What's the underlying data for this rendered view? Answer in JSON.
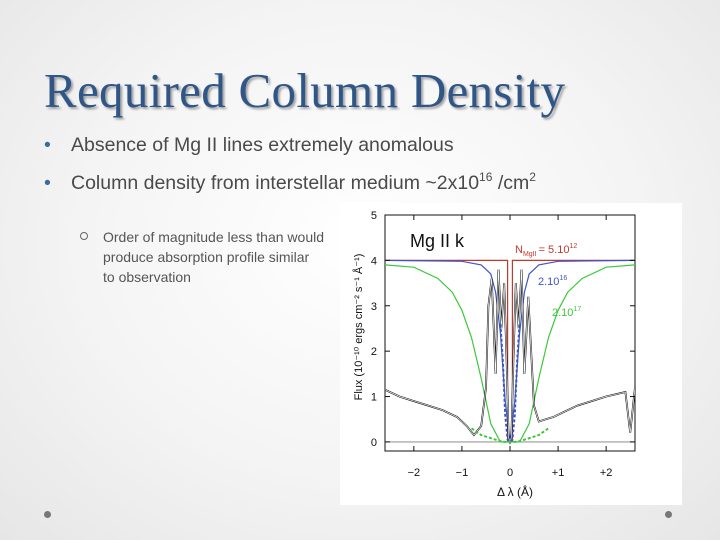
{
  "slide": {
    "title": "Required Column Density",
    "bullets": [
      {
        "text": "Absence of Mg II lines extremely anomalous"
      },
      {
        "text_pre": "Column density from interstellar medium ~2x10",
        "exp1": "16",
        "text_mid": " /cm",
        "exp2": "2"
      }
    ],
    "sub_bullet": "Order of magnitude less than would produce absorption profile similar to observation"
  },
  "figure": {
    "plot_title": "Mg II k",
    "ylabel": "Flux (10⁻¹⁰ ergs cm⁻² s⁻¹ Å⁻¹)",
    "xlabel": "Δ λ (Å)",
    "annotations": {
      "n_label": "N",
      "n_sub": "MgII",
      "n_value": "= 5.10",
      "n_exp": "12",
      "a2_value": "2.10",
      "a2_exp": "16",
      "a3_value": "2.10",
      "a3_exp": "17"
    },
    "colors": {
      "red": "#c0392b",
      "blue": "#3b55c8",
      "green": "#3cc83c",
      "black": "#111111",
      "gray": "#9a9a9a"
    }
  },
  "chart_data": {
    "type": "line",
    "title": "Mg II k",
    "xlabel": "Δ λ (Å)",
    "ylabel": "Flux (10⁻¹⁰ ergs cm⁻² s⁻¹ Å⁻¹)",
    "xlim": [
      -2.6,
      2.6
    ],
    "ylim": [
      -0.2,
      5.0
    ],
    "xticks": [
      "−2",
      "−1",
      "0",
      "+1",
      "+2"
    ],
    "xtick_values": [
      -2,
      -1,
      0,
      1,
      2
    ],
    "yticks": [
      "0",
      "1",
      "2",
      "3",
      "4",
      "5"
    ],
    "ytick_values": [
      0,
      1,
      2,
      3,
      4,
      5
    ],
    "series": [
      {
        "name": "N = 5.10^12",
        "color": "#c0392b",
        "x": [
          -2.6,
          -0.06,
          -0.05,
          -0.05,
          0.05,
          0.05,
          0.06,
          2.6
        ],
        "y": [
          4.0,
          4.0,
          4.0,
          0.0,
          0.0,
          4.0,
          4.0,
          4.0
        ]
      },
      {
        "name": "2.10^16",
        "color": "#3b55c8",
        "x": [
          -2.6,
          -1.0,
          -0.6,
          -0.4,
          -0.3,
          -0.2,
          -0.1,
          0.0,
          0.1,
          0.2,
          0.3,
          0.4,
          0.6,
          1.0,
          2.6
        ],
        "y": [
          4.0,
          3.98,
          3.9,
          3.7,
          3.3,
          2.4,
          0.9,
          0.0,
          0.9,
          2.4,
          3.3,
          3.7,
          3.9,
          3.98,
          4.0
        ]
      },
      {
        "name": "2.10^17",
        "color": "#3cc83c",
        "x": [
          -2.6,
          -2.0,
          -1.5,
          -1.2,
          -1.0,
          -0.8,
          -0.6,
          -0.4,
          -0.2,
          0.0,
          0.2,
          0.4,
          0.6,
          0.8,
          1.0,
          1.2,
          1.5,
          2.0,
          2.6
        ],
        "y": [
          3.9,
          3.85,
          3.6,
          3.3,
          2.9,
          2.3,
          1.4,
          0.4,
          0.0,
          0.0,
          0.0,
          0.4,
          1.4,
          2.3,
          2.9,
          3.3,
          3.6,
          3.85,
          3.9
        ]
      },
      {
        "name": "observation",
        "color": "#111111",
        "x": [
          -2.6,
          -2.3,
          -2.0,
          -1.7,
          -1.4,
          -1.1,
          -0.9,
          -0.75,
          -0.6,
          -0.5,
          -0.45,
          -0.38,
          -0.3,
          -0.24,
          -0.18,
          -0.12,
          -0.07,
          -0.03,
          0.0,
          0.03,
          0.07,
          0.12,
          0.18,
          0.24,
          0.3,
          0.38,
          0.45,
          0.5,
          0.6,
          0.75,
          0.9,
          1.1,
          1.4,
          1.7,
          2.0,
          2.2,
          2.4,
          2.5,
          2.6
        ],
        "y": [
          1.15,
          1.0,
          0.9,
          0.8,
          0.7,
          0.55,
          0.35,
          0.15,
          0.35,
          1.2,
          3.0,
          3.6,
          1.5,
          3.8,
          2.5,
          3.5,
          1.8,
          0.1,
          0.0,
          0.1,
          1.8,
          3.5,
          2.5,
          3.8,
          1.5,
          3.2,
          1.8,
          0.8,
          0.45,
          0.5,
          0.55,
          0.65,
          0.8,
          0.9,
          1.0,
          1.05,
          1.1,
          0.2,
          1.2
        ]
      },
      {
        "name": "blue-dashed",
        "color": "#3b55c8",
        "dashed": true,
        "x": [
          -0.2,
          -0.15,
          -0.1,
          -0.05,
          0.0,
          0.05,
          0.1,
          0.15,
          0.2
        ],
        "y": [
          2.6,
          1.8,
          0.6,
          0.05,
          0.0,
          0.05,
          0.6,
          1.8,
          2.6
        ]
      },
      {
        "name": "green-dashed",
        "color": "#3cc83c",
        "dashed": true,
        "x": [
          -0.8,
          -0.6,
          -0.45,
          -0.3,
          -0.15,
          0.0,
          0.15,
          0.3,
          0.45,
          0.6,
          0.8
        ],
        "y": [
          0.3,
          0.15,
          0.1,
          0.05,
          0.0,
          0.0,
          0.0,
          0.05,
          0.1,
          0.15,
          0.3
        ]
      }
    ],
    "reference_lines": [
      {
        "y": 0,
        "color": "#9a9a9a"
      }
    ],
    "grid": false,
    "legend": "none"
  }
}
